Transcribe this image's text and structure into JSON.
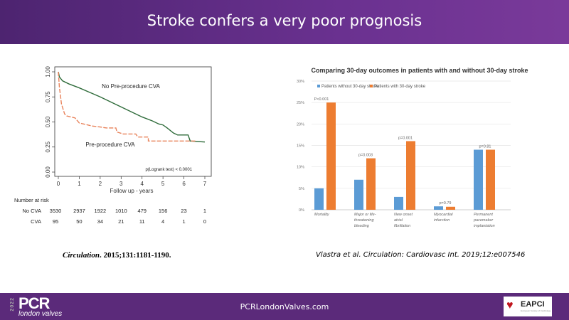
{
  "header": {
    "title": "Stroke confers a very poor prognosis"
  },
  "footer": {
    "url": "PCRLondonValves.com",
    "logo_year": "2022",
    "logo_pcr": "PCR",
    "logo_sub": "london valves",
    "eapci": "EAPCI",
    "eapci_sub": "European Society of Cardiology"
  },
  "citations": {
    "left_journal": "Circulation",
    "left_ref": ". 2015;131:1181-1190.",
    "right": "Vlastra et al. Circulation: Cardiovasc Int. 2019;12:e007546"
  },
  "chart_data": [
    {
      "type": "line",
      "title": "",
      "xlabel": "Follow up - years",
      "ylabel": "",
      "xlim": [
        0,
        7
      ],
      "ylim": [
        0,
        1
      ],
      "x_ticks": [
        "0",
        "1",
        "2",
        "3",
        "4",
        "5",
        "6",
        "7"
      ],
      "y_ticks": [
        "0.00",
        "0.25",
        "0.50",
        "0.75",
        "1.00"
      ],
      "annotation": "p(Logrank test) < 0.0001",
      "series": [
        {
          "name": "No Pre-procedure CVA",
          "color": "#2e6b3a",
          "dashed": false,
          "points": [
            [
              0,
              1
            ],
            [
              0.05,
              0.95
            ],
            [
              0.2,
              0.91
            ],
            [
              0.5,
              0.88
            ],
            [
              1,
              0.84
            ],
            [
              2,
              0.75
            ],
            [
              3,
              0.65
            ],
            [
              4,
              0.55
            ],
            [
              4.5,
              0.51
            ],
            [
              4.8,
              0.48
            ],
            [
              5,
              0.47
            ],
            [
              5.2,
              0.44
            ],
            [
              5.5,
              0.39
            ],
            [
              5.7,
              0.37
            ],
            [
              6.2,
              0.37
            ],
            [
              6.3,
              0.31
            ],
            [
              7,
              0.3
            ]
          ]
        },
        {
          "name": "Pre-procedure CVA",
          "color": "#e8825a",
          "dashed": true,
          "points": [
            [
              0,
              1
            ],
            [
              0.05,
              0.85
            ],
            [
              0.15,
              0.68
            ],
            [
              0.3,
              0.58
            ],
            [
              0.4,
              0.56
            ],
            [
              0.8,
              0.54
            ],
            [
              1,
              0.49
            ],
            [
              1.2,
              0.48
            ],
            [
              1.6,
              0.46
            ],
            [
              2,
              0.45
            ],
            [
              2.3,
              0.44
            ],
            [
              2.75,
              0.44
            ],
            [
              2.8,
              0.4
            ],
            [
              3.1,
              0.38
            ],
            [
              3.7,
              0.38
            ],
            [
              3.8,
              0.35
            ],
            [
              4.3,
              0.35
            ],
            [
              4.3,
              0.31
            ],
            [
              6.6,
              0.31
            ]
          ]
        }
      ],
      "risk_table": {
        "title": "Number at risk",
        "rows": [
          {
            "label": "No CVA",
            "values": [
              "3530",
              "2937",
              "1922",
              "1010",
              "479",
              "156",
              "23",
              "1"
            ]
          },
          {
            "label": "CVA",
            "values": [
              "95",
              "50",
              "34",
              "21",
              "11",
              "4",
              "1",
              "0"
            ]
          }
        ]
      }
    },
    {
      "type": "bar",
      "title": "Comparing 30-day outcomes in patients with and without 30-day stroke",
      "xlabel": "",
      "ylabel": "",
      "ylim": [
        0,
        30
      ],
      "y_ticks": [
        "0%",
        "5%",
        "10%",
        "15%",
        "20%",
        "25%",
        "30%"
      ],
      "grid": true,
      "legend": "top-left",
      "categories": [
        [
          "Mortality"
        ],
        [
          "Major or life-",
          "threatening",
          "bleeding"
        ],
        [
          "New onset",
          "atrial",
          "fibrillation"
        ],
        [
          "Myocardial",
          "infarction"
        ],
        [
          "Permanent",
          "pacemaker",
          "implantation"
        ]
      ],
      "series": [
        {
          "name": "Patients without 30-day stroke",
          "color": "#5b9bd5",
          "values": [
            5,
            7,
            3,
            0.8,
            14
          ]
        },
        {
          "name": "Patients with 30-day stroke",
          "color": "#ed7d31",
          "values": [
            25,
            12,
            16,
            0.7,
            14
          ]
        }
      ],
      "p_values": [
        "P<0.001",
        "p=0.003",
        "p=0.001",
        "p=0.79",
        "p=0.81"
      ]
    }
  ]
}
